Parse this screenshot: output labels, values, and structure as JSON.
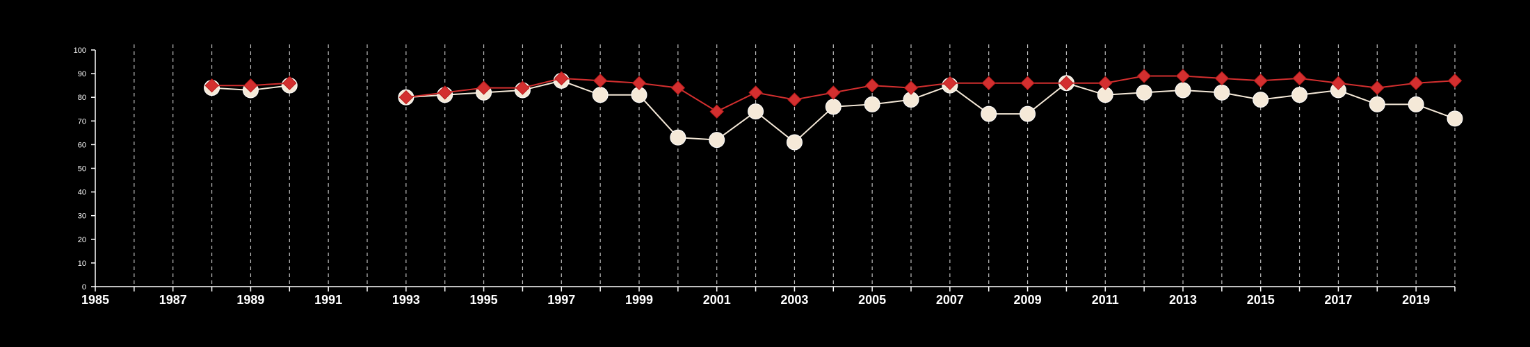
{
  "chart_data": {
    "type": "line",
    "title": "",
    "xlabel": "",
    "ylabel": "",
    "xlim": [
      1985,
      2020
    ],
    "ylim": [
      0,
      100
    ],
    "y_ticks": [
      0,
      10,
      20,
      30,
      40,
      50,
      60,
      70,
      80,
      90,
      100
    ],
    "x_tick_labels": [
      1985,
      1987,
      1989,
      1991,
      1993,
      1995,
      1997,
      1999,
      2001,
      2003,
      2005,
      2007,
      2009,
      2011,
      2013,
      2015,
      2017,
      2019
    ],
    "grid": "vertical-dashed-yearly",
    "legend": "none",
    "background": "#000000",
    "series": [
      {
        "color": "#d32f2f",
        "marker": "diamond",
        "points": [
          [
            1988,
            85
          ],
          [
            1989,
            85
          ],
          [
            1990,
            86
          ],
          [
            1993,
            80
          ],
          [
            1994,
            82
          ],
          [
            1995,
            84
          ],
          [
            1996,
            84
          ],
          [
            1997,
            88
          ],
          [
            1998,
            87
          ],
          [
            1999,
            86
          ],
          [
            2000,
            84
          ],
          [
            2001,
            74
          ],
          [
            2002,
            82
          ],
          [
            2003,
            79
          ],
          [
            2004,
            82
          ],
          [
            2005,
            85
          ],
          [
            2006,
            84
          ],
          [
            2007,
            86
          ],
          [
            2008,
            86
          ],
          [
            2009,
            86
          ],
          [
            2010,
            86
          ],
          [
            2011,
            86
          ],
          [
            2012,
            89
          ],
          [
            2013,
            89
          ],
          [
            2014,
            88
          ],
          [
            2015,
            87
          ],
          [
            2016,
            88
          ],
          [
            2017,
            86
          ],
          [
            2018,
            84
          ],
          [
            2019,
            86
          ],
          [
            2020,
            87
          ]
        ]
      },
      {
        "color": "#f5e9d8",
        "marker": "circle",
        "points": [
          [
            1988,
            84
          ],
          [
            1989,
            83
          ],
          [
            1990,
            85
          ],
          [
            1993,
            80
          ],
          [
            1994,
            81
          ],
          [
            1995,
            82
          ],
          [
            1996,
            83
          ],
          [
            1997,
            87
          ],
          [
            1998,
            81
          ],
          [
            1999,
            81
          ],
          [
            2000,
            63
          ],
          [
            2001,
            62
          ],
          [
            2002,
            74
          ],
          [
            2003,
            61
          ],
          [
            2004,
            76
          ],
          [
            2005,
            77
          ],
          [
            2006,
            79
          ],
          [
            2007,
            85
          ],
          [
            2008,
            73
          ],
          [
            2009,
            73
          ],
          [
            2010,
            86
          ],
          [
            2011,
            81
          ],
          [
            2012,
            82
          ],
          [
            2013,
            83
          ],
          [
            2014,
            82
          ],
          [
            2015,
            79
          ],
          [
            2016,
            81
          ],
          [
            2017,
            83
          ],
          [
            2018,
            77
          ],
          [
            2019,
            77
          ],
          [
            2020,
            71
          ]
        ]
      }
    ]
  }
}
